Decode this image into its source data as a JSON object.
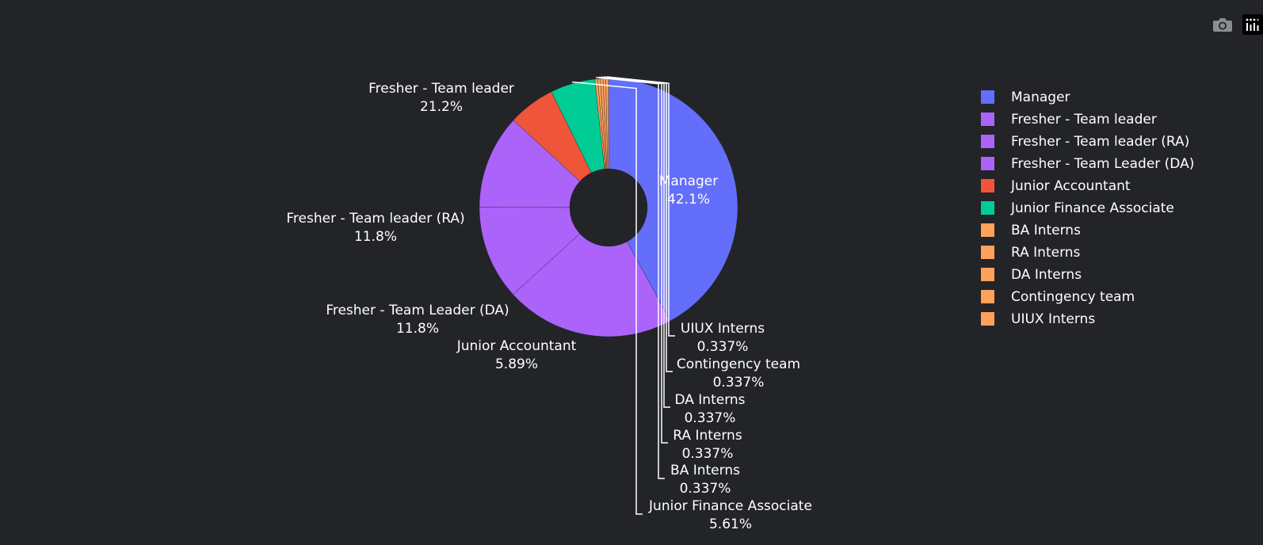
{
  "modebar": {
    "camera_icon": "camera-icon",
    "logo_icon": "plotly-logo-icon"
  },
  "colors": {
    "background": "#222427",
    "label_text": "#ffffff",
    "leader_line": "#ffffff"
  },
  "chart_data": {
    "type": "pie",
    "hole": true,
    "legend_position": "right",
    "text_info": "label+percent",
    "slices": [
      {
        "label": "Manager",
        "percent": "42.1%",
        "value": 42.1,
        "color": "#636efa"
      },
      {
        "label": "Fresher - Team leader",
        "percent": "21.2%",
        "value": 21.2,
        "color": "#ab63fa"
      },
      {
        "label": "Fresher - Team leader (RA)",
        "percent": "11.8%",
        "value": 11.8,
        "color": "#ab63fa"
      },
      {
        "label": "Fresher - Team Leader (DA)",
        "percent": "11.8%",
        "value": 11.8,
        "color": "#ab63fa"
      },
      {
        "label": "Junior Accountant",
        "percent": "5.89%",
        "value": 5.89,
        "color": "#ef553b"
      },
      {
        "label": "Junior Finance Associate",
        "percent": "5.61%",
        "value": 5.61,
        "color": "#00cc96"
      },
      {
        "label": "BA Interns",
        "percent": "0.337%",
        "value": 0.337,
        "color": "#ffa15a"
      },
      {
        "label": "RA Interns",
        "percent": "0.337%",
        "value": 0.337,
        "color": "#ffa15a"
      },
      {
        "label": "DA Interns",
        "percent": "0.337%",
        "value": 0.337,
        "color": "#ffa15a"
      },
      {
        "label": "Contingency team",
        "percent": "0.337%",
        "value": 0.337,
        "color": "#ffa15a"
      },
      {
        "label": "UIUX Interns",
        "percent": "0.337%",
        "value": 0.337,
        "color": "#ffa15a"
      }
    ],
    "legend": [
      "Manager",
      "Fresher - Team leader",
      "Fresher - Team leader (RA)",
      "Fresher - Team Leader (DA)",
      "Junior Accountant",
      "Junior Finance Associate",
      "BA Interns",
      "RA Interns",
      "DA Interns",
      "Contingency team",
      "UIUX Interns"
    ]
  }
}
